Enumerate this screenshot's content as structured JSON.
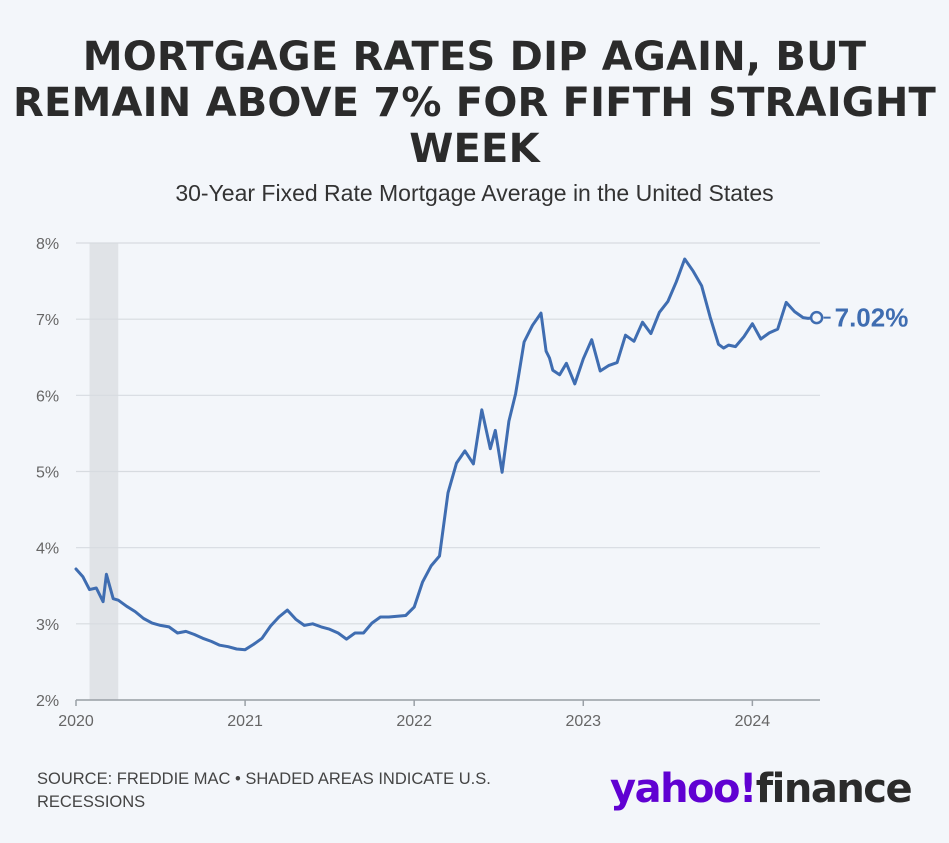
{
  "title": "MORTGAGE RATES DIP AGAIN, BUT REMAIN ABOVE 7% FOR FIFTH STRAIGHT WEEK",
  "subtitle": "30-Year Fixed Rate Mortgage Average in the United States",
  "source": "SOURCE: FREDDIE MAC • SHADED AREAS INDICATE U.S. RECESSIONS",
  "brand": {
    "part1": "yahoo!",
    "part2": "finance"
  },
  "colors": {
    "line": "#3f6db1",
    "grid": "#d7dbe0",
    "recession": "#e0e3e7",
    "axis": "#8a8f96",
    "brand_purple": "#6001d2"
  },
  "chart_data": {
    "type": "line",
    "title": "",
    "xlabel": "",
    "ylabel": "",
    "ylim": [
      2,
      8
    ],
    "xlim": [
      2020.0,
      2024.4
    ],
    "y_ticks": [
      "2%",
      "3%",
      "4%",
      "5%",
      "6%",
      "7%",
      "8%"
    ],
    "x_ticks": [
      "2020",
      "2021",
      "2022",
      "2023",
      "2024"
    ],
    "recessions": [
      {
        "start": 2020.08,
        "end": 2020.25
      }
    ],
    "end_label": "7.02%",
    "grid": true,
    "series": [
      {
        "x": [
          2020.0,
          2020.04,
          2020.08,
          2020.12,
          2020.16,
          2020.18,
          2020.22,
          2020.25,
          2020.3,
          2020.35,
          2020.4,
          2020.45,
          2020.5,
          2020.55,
          2020.6,
          2020.65,
          2020.7,
          2020.75,
          2020.8,
          2020.85,
          2020.9,
          2020.95,
          2021.0,
          2021.05,
          2021.1,
          2021.15,
          2021.2,
          2021.25,
          2021.3,
          2021.35,
          2021.4,
          2021.45,
          2021.5,
          2021.55,
          2021.6,
          2021.65,
          2021.7,
          2021.75,
          2021.8,
          2021.85,
          2021.9,
          2021.95,
          2022.0,
          2022.05,
          2022.1,
          2022.15,
          2022.2,
          2022.25,
          2022.3,
          2022.35,
          2022.4,
          2022.45,
          2022.48,
          2022.52,
          2022.56,
          2022.6,
          2022.62,
          2022.65,
          2022.7,
          2022.75,
          2022.78,
          2022.8,
          2022.82,
          2022.86,
          2022.9,
          2022.95,
          2023.0,
          2023.05,
          2023.1,
          2023.15,
          2023.2,
          2023.25,
          2023.3,
          2023.35,
          2023.4,
          2023.45,
          2023.5,
          2023.55,
          2023.6,
          2023.65,
          2023.7,
          2023.75,
          2023.8,
          2023.83,
          2023.86,
          2023.9,
          2023.95,
          2024.0,
          2024.05,
          2024.1,
          2024.15,
          2024.2,
          2024.25,
          2024.3,
          2024.33,
          2024.36,
          2024.38
        ],
        "y": [
          3.72,
          3.62,
          3.45,
          3.47,
          3.29,
          3.65,
          3.33,
          3.31,
          3.23,
          3.16,
          3.07,
          3.01,
          2.98,
          2.96,
          2.88,
          2.9,
          2.86,
          2.81,
          2.77,
          2.72,
          2.7,
          2.67,
          2.66,
          2.73,
          2.81,
          2.97,
          3.09,
          3.18,
          3.06,
          2.98,
          3.0,
          2.96,
          2.93,
          2.88,
          2.8,
          2.88,
          2.88,
          3.01,
          3.09,
          3.09,
          3.1,
          3.11,
          3.22,
          3.55,
          3.76,
          3.89,
          4.72,
          5.11,
          5.27,
          5.1,
          5.81,
          5.3,
          5.54,
          4.99,
          5.66,
          6.02,
          6.29,
          6.7,
          6.92,
          7.08,
          6.58,
          6.49,
          6.33,
          6.27,
          6.42,
          6.15,
          6.48,
          6.73,
          6.32,
          6.39,
          6.43,
          6.79,
          6.71,
          6.96,
          6.81,
          7.09,
          7.23,
          7.49,
          7.79,
          7.63,
          7.44,
          7.03,
          6.67,
          6.62,
          6.66,
          6.64,
          6.77,
          6.94,
          6.74,
          6.82,
          6.87,
          7.22,
          7.1,
          7.02,
          7.01,
          7.02,
          7.02
        ]
      }
    ]
  }
}
